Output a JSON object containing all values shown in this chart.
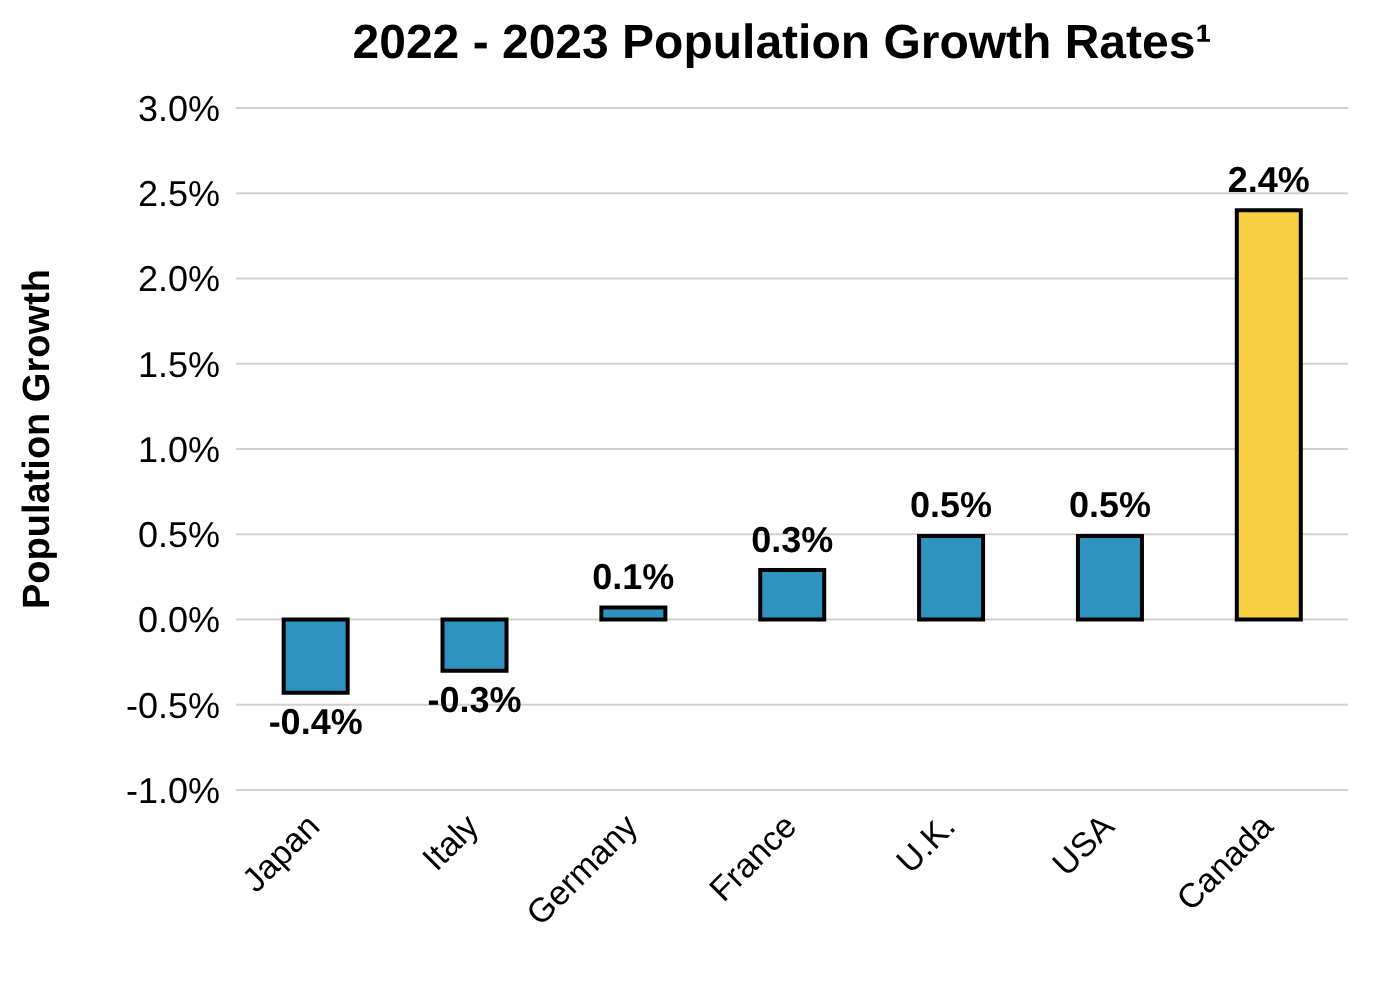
{
  "chart_data": {
    "type": "bar",
    "title": "2022 - 2023 Population Growth Rates¹",
    "ylabel": "Population Growth",
    "categories": [
      "Japan",
      "Italy",
      "Germany",
      "France",
      "U.K.",
      "USA",
      "Canada"
    ],
    "values": [
      -0.43,
      -0.3,
      0.07,
      0.29,
      0.49,
      0.49,
      2.4
    ],
    "value_labels": [
      "-0.4%",
      "-0.3%",
      "0.1%",
      "0.3%",
      "0.5%",
      "0.5%",
      "2.4%"
    ],
    "colors": [
      "#2e93bf",
      "#2e93bf",
      "#2e93bf",
      "#2e93bf",
      "#2e93bf",
      "#2e93bf",
      "#f8cf43"
    ],
    "ylim": [
      -1.0,
      3.0
    ],
    "yticks": [
      {
        "value": -1.0,
        "label": "-1.0%"
      },
      {
        "value": -0.5,
        "label": "-0.5%"
      },
      {
        "value": 0.0,
        "label": "0.0%"
      },
      {
        "value": 0.5,
        "label": "0.5%"
      },
      {
        "value": 1.0,
        "label": "1.0%"
      },
      {
        "value": 1.5,
        "label": "1.5%"
      },
      {
        "value": 2.0,
        "label": "2.0%"
      },
      {
        "value": 2.5,
        "label": "2.5%"
      },
      {
        "value": 3.0,
        "label": "3.0%"
      }
    ],
    "grid": "y"
  }
}
